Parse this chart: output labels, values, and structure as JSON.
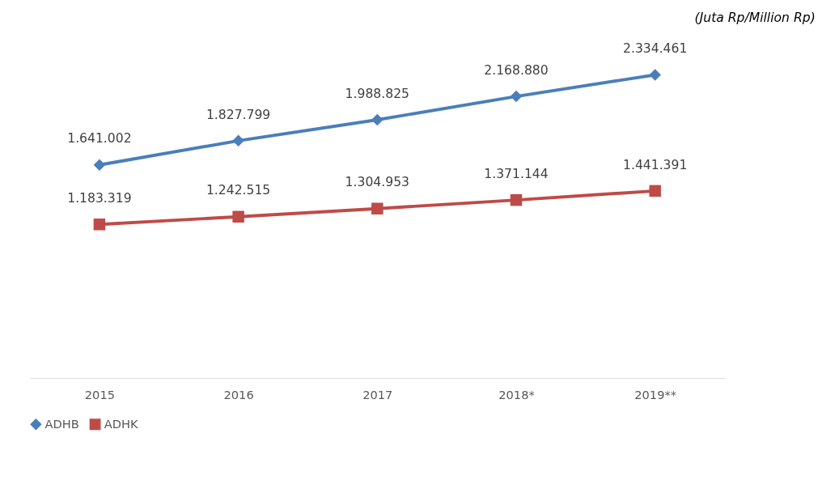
{
  "chart_data": {
    "type": "line",
    "categories": [
      "2015",
      "2016",
      "2017",
      "2018*",
      "2019**"
    ],
    "series": [
      {
        "name": "ADHB",
        "color": "#4a7ebb",
        "marker": "diamond",
        "values": [
          1641002,
          1827799,
          1988825,
          2168880,
          2334461
        ],
        "value_labels": [
          "1.641.002",
          "1.827.799",
          "1.988.825",
          "2.168.880",
          "2.334.461"
        ]
      },
      {
        "name": "ADHK",
        "color": "#be4b48",
        "marker": "square",
        "values": [
          1183319,
          1242515,
          1304953,
          1371144,
          1441391
        ],
        "value_labels": [
          "1.183.319",
          "1.242.515",
          "1.304.953",
          "1.371.144",
          "1.441.391"
        ]
      }
    ],
    "tick_labels": "x",
    "grid": false,
    "legend": "bottom",
    "line_style": "solid",
    "annotations": [
      "(Juta Rp/Million Rp)"
    ]
  }
}
